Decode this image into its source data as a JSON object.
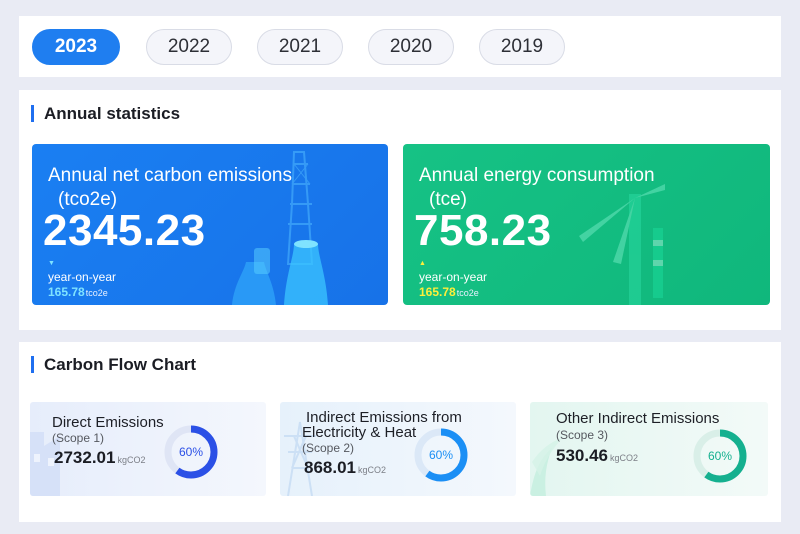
{
  "years": [
    "2023",
    "2022",
    "2021",
    "2020",
    "2019"
  ],
  "stats": {
    "title": "Annual statistics",
    "carbon": {
      "title": "Annual net carbon emissions",
      "unit": "(tco2e)",
      "value": "2345.23",
      "yoy_label": "year-on-year",
      "yoy_value": "165.78",
      "yoy_unit": "tco2e",
      "trend": "down",
      "trend_icon": "triangle-down-icon",
      "color": "#1a7ff2"
    },
    "energy": {
      "title": "Annual energy consumption",
      "unit": "(tce)",
      "value": "758.23",
      "yoy_label": "year-on-year",
      "yoy_value": "165.78",
      "yoy_unit": "tco2e",
      "trend": "up",
      "trend_icon": "triangle-up-icon",
      "color": "#16c285"
    }
  },
  "flow": {
    "title": "Carbon Flow Chart",
    "cards": [
      {
        "title": "Direct Emissions",
        "scope": "(Scope 1)",
        "value": "2732.01",
        "unit": "kgCO2",
        "percent_label": "60%",
        "percent": 0.6,
        "color": "#2b50e6",
        "icon": "factory-icon"
      },
      {
        "title": "Indirect Emissions from Electricity & Heat",
        "title_line1": "Indirect Emissions from",
        "title_line2": "Electricity & Heat",
        "scope": "(Scope 2)",
        "value": "868.01",
        "unit": "kgCO2",
        "percent_label": "60%",
        "percent": 0.6,
        "color": "#1b8ff5",
        "icon": "power-tower-icon"
      },
      {
        "title": "Other Indirect Emissions",
        "scope": "(Scope 3)",
        "value": "530.46",
        "unit": "kgCO2",
        "percent_label": "60%",
        "percent": 0.6,
        "color": "#15b08f",
        "icon": "leaf-icon"
      }
    ]
  }
}
